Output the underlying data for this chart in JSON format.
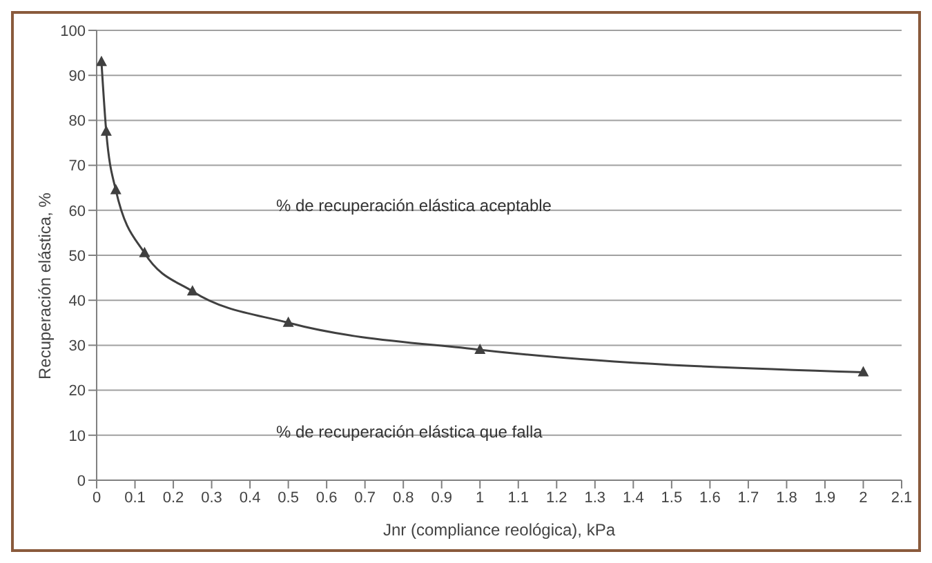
{
  "chart_data": {
    "type": "line",
    "xlabel": "Jnr (compliance reológica), kPa",
    "ylabel": "Recuperación elástica, %",
    "x": [
      0.0125,
      0.025,
      0.05,
      0.125,
      0.25,
      0.5,
      1,
      2
    ],
    "series": [
      {
        "color": "#404040",
        "values": [
          93,
          77.5,
          64.5,
          50.5,
          42,
          35,
          29,
          24
        ]
      }
    ],
    "xlim": [
      0,
      2.1
    ],
    "xticks": [
      0,
      0.1,
      0.2,
      0.3,
      0.4,
      0.5,
      0.6,
      0.7,
      0.8,
      0.9,
      1,
      1.1,
      1.2,
      1.3,
      1.4,
      1.5,
      1.6,
      1.7,
      1.8,
      1.9,
      2,
      2.1
    ],
    "ylim": [
      0,
      100
    ],
    "yticks": [
      0,
      10,
      20,
      30,
      40,
      50,
      60,
      70,
      80,
      90,
      100
    ],
    "grid": "y",
    "marker": "triangle",
    "line_style": "solid",
    "annotations": [
      "% de recuperación elástica aceptable",
      "% de recuperación elástica que falla"
    ]
  }
}
